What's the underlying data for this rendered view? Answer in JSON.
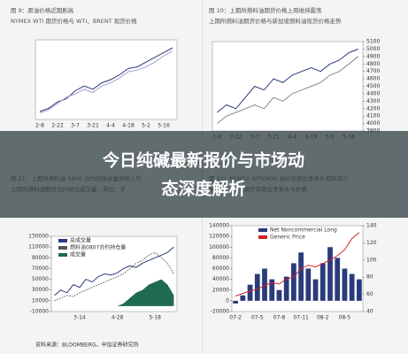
{
  "banner": {
    "lines": [
      "今日纯碱最新报价与市场动",
      "态深度解析"
    ]
  },
  "footer": "资料来源：BLOOMBERG，中信证券研究所",
  "chart_data": [
    {
      "type": "line",
      "title": "图 9：原油价格近期剧高",
      "subtitle": "NYMEX WTI 期货价格与 WTI、BRENT 现货价格",
      "categories": [
        "2-8",
        null,
        "2-22",
        null,
        "3-7",
        null,
        "3-21",
        null,
        "4-4",
        null,
        "4-18",
        null,
        "5-2",
        null,
        "5-16",
        null
      ],
      "ylim": [
        85,
        135
      ],
      "yticks": [],
      "series": [
        {
          "name": "WTI",
          "color": "#2a3a7a",
          "values": [
            90,
            92,
            96,
            98,
            103,
            106,
            104,
            108,
            110,
            113,
            117,
            118,
            121,
            124,
            127,
            130
          ]
        },
        {
          "name": "BRENT",
          "color": "#a99ad8",
          "values": [
            89,
            91,
            95,
            99,
            101,
            104,
            102,
            106,
            108,
            111,
            115,
            116,
            118,
            121,
            125,
            128
          ]
        }
      ]
    },
    {
      "type": "line",
      "title": "图 10：上期所燃料油期货价格上周维持震荡",
      "subtitle": "上期所燃料油期货价格与新加坡燃料油现货价格走势",
      "categories": [
        "2-8",
        null,
        "2-22",
        null,
        "3-7",
        null,
        "3-21",
        null,
        "4-4",
        null,
        "4-18",
        null,
        "5-2",
        null,
        "5-16",
        null
      ],
      "ylim": [
        3900,
        5100
      ],
      "yticks": [
        3900,
        4000,
        4100,
        4200,
        4300,
        4400,
        4500,
        4600,
        4700,
        4800,
        4900,
        5000,
        5100
      ],
      "series": [
        {
          "name": "上期所燃料油",
          "color": "#2a3a7a",
          "values": [
            4150,
            4250,
            4200,
            4350,
            4500,
            4450,
            4600,
            4550,
            4650,
            4700,
            4750,
            4700,
            4800,
            4850,
            4950,
            5000
          ]
        },
        {
          "name": "新加坡燃料油",
          "color": "#888888",
          "values": [
            4000,
            4100,
            4150,
            4200,
            4250,
            4200,
            4350,
            4300,
            4400,
            4450,
            4500,
            4550,
            4650,
            4700,
            4800,
            4900
          ]
        }
      ]
    },
    {
      "type": "line",
      "title": "图 11：上期所燃料油 0806 合约的持仓量继续上升",
      "subtitle": "上期所燃料油期货合约持仓成交量，单位：手",
      "categories": [
        null,
        null,
        null,
        null,
        "3-14",
        null,
        null,
        null,
        null,
        null,
        "4-28",
        null,
        null,
        null,
        null,
        null,
        "5-18",
        null,
        null,
        null
      ],
      "ylim": [
        -10000,
        130000
      ],
      "yticks": [
        -10000,
        10000,
        30000,
        50000,
        70000,
        90000,
        110000,
        130000
      ],
      "series": [
        {
          "name": "总成交量",
          "color": "#2a3a7a",
          "values": [
            20000,
            30000,
            25000,
            40000,
            35000,
            50000,
            45000,
            55000,
            60000,
            58000,
            62000,
            70000,
            75000,
            72000,
            80000,
            85000,
            90000,
            95000,
            100000,
            110000
          ]
        },
        {
          "name": "燃料油0807合约持仓量",
          "color": "#555555",
          "dash": true,
          "values": [
            10000,
            15000,
            20000,
            18000,
            25000,
            30000,
            35000,
            40000,
            45000,
            50000,
            55000,
            60000,
            70000,
            80000,
            85000,
            95000,
            100000,
            90000,
            80000,
            60000
          ]
        },
        {
          "name": "成交量",
          "color": "#1f6b4f",
          "kind": "area",
          "values": [
            0,
            0,
            0,
            0,
            0,
            0,
            0,
            0,
            0,
            0,
            0,
            5000,
            15000,
            25000,
            30000,
            40000,
            45000,
            50000,
            40000,
            20000
          ]
        }
      ]
    },
    {
      "type": "line",
      "title": "图 12：NYMEX WTI0806 合约非商业净多头有所减少",
      "subtitle": "NYMEX WTI 期货非商业净多头与价格",
      "categories": [
        "07-2",
        null,
        null,
        "07-5",
        null,
        null,
        "07-8",
        null,
        null,
        "07-11",
        null,
        null,
        "08-2",
        null,
        null,
        "08-5",
        null,
        null
      ],
      "ylim": [
        -20000,
        140000
      ],
      "yticks": [
        -20000,
        0,
        20000,
        40000,
        60000,
        80000,
        100000,
        120000,
        140000
      ],
      "y2lim": [
        40,
        140
      ],
      "y2ticks": [
        40,
        60,
        80,
        100,
        120,
        140
      ],
      "series": [
        {
          "name": "Net Noncommercial Long",
          "color": "#2a3a7a",
          "kind": "bar",
          "values": [
            -5000,
            10000,
            30000,
            50000,
            60000,
            40000,
            20000,
            45000,
            70000,
            90000,
            60000,
            40000,
            70000,
            100000,
            80000,
            60000,
            50000,
            40000
          ]
        },
        {
          "name": "Generic Price",
          "color": "#d62020",
          "axis": "y2",
          "values": [
            58,
            61,
            64,
            66,
            70,
            74,
            72,
            78,
            80,
            90,
            94,
            92,
            96,
            100,
            105,
            112,
            125,
            132
          ]
        }
      ]
    }
  ]
}
